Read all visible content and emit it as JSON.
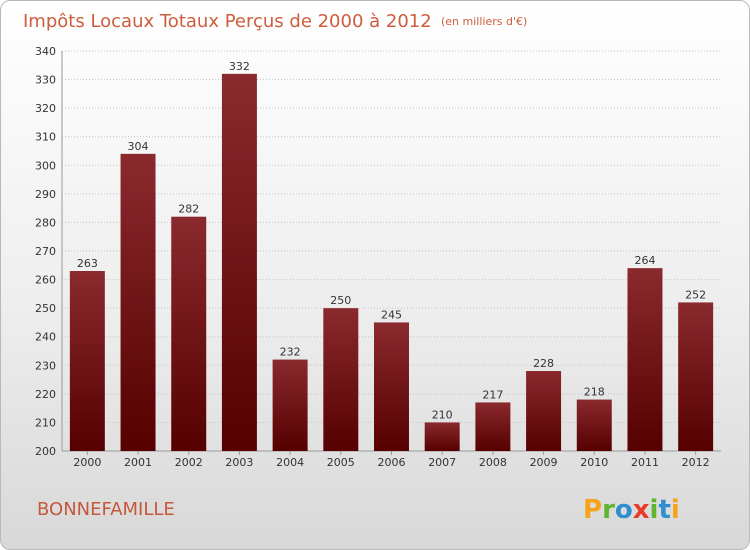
{
  "chart_data": {
    "type": "bar",
    "title": "Impôts Locaux Totaux Perçus de 2000 à 2012",
    "subtitle": "(en milliers d'€)",
    "categories": [
      "2000",
      "2001",
      "2002",
      "2003",
      "2004",
      "2005",
      "2006",
      "2007",
      "2008",
      "2009",
      "2010",
      "2011",
      "2012"
    ],
    "values": [
      263,
      304,
      282,
      332,
      232,
      250,
      245,
      210,
      217,
      228,
      218,
      264,
      252
    ],
    "ylim": [
      200,
      340
    ],
    "yticks": [
      200,
      210,
      220,
      230,
      240,
      250,
      260,
      270,
      280,
      290,
      300,
      310,
      320,
      330,
      340
    ],
    "xlabel": "",
    "ylabel": "",
    "grid": true,
    "bar_color": "#6e0c0f"
  },
  "commune": "BONNEFAMILLE",
  "logo": {
    "letters": [
      "P",
      "r",
      "o",
      "x",
      "i",
      "t",
      "i"
    ],
    "colors": [
      "#f5a31a",
      "#5fb430",
      "#2f8fd0",
      "#e83b2a",
      "#5fb430",
      "#2f8fd0",
      "#f5a31a"
    ]
  }
}
